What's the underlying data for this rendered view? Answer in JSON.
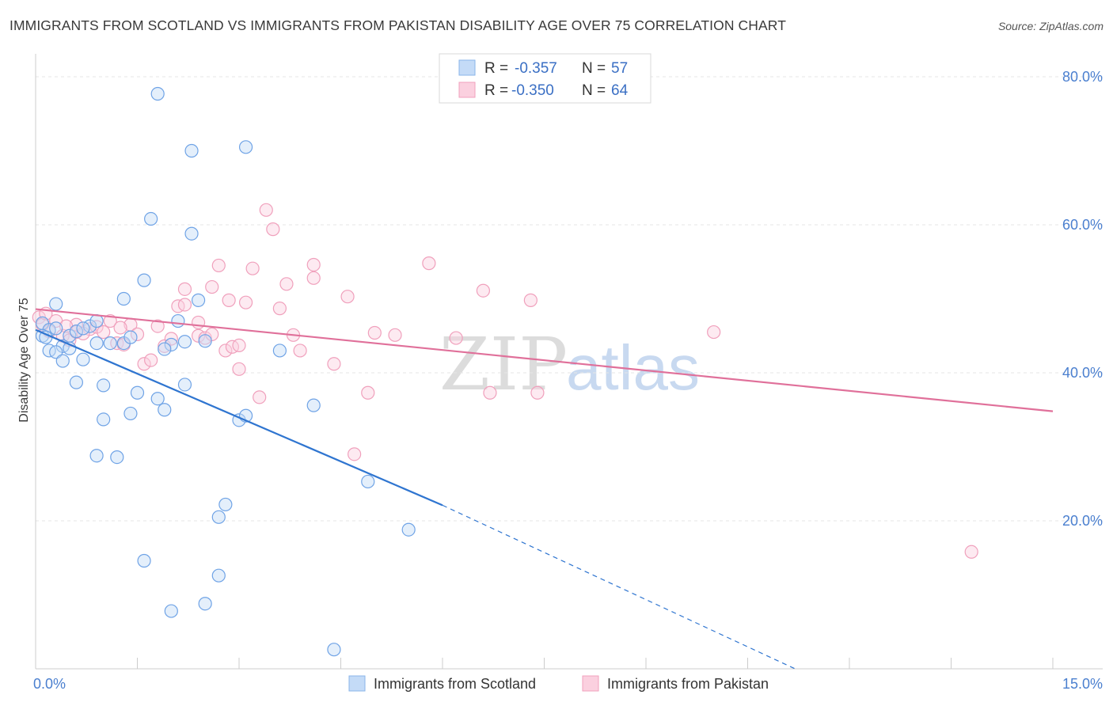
{
  "title": "IMMIGRANTS FROM SCOTLAND VS IMMIGRANTS FROM PAKISTAN DISABILITY AGE OVER 75 CORRELATION CHART",
  "source": "Source: ZipAtlas.com",
  "chart_data": {
    "type": "scatter",
    "title": "IMMIGRANTS FROM SCOTLAND VS IMMIGRANTS FROM PAKISTAN DISABILITY AGE OVER 75 CORRELATION CHART",
    "xlabel": "",
    "ylabel": "Disability Age Over 75",
    "xlim": [
      0,
      15
    ],
    "ylim": [
      0,
      80
    ],
    "x_tick_labels": [
      "0.0%",
      "15.0%"
    ],
    "y_ticks": [
      20,
      40,
      60,
      80
    ],
    "y_tick_labels": [
      "20.0%",
      "40.0%",
      "60.0%",
      "80.0%"
    ],
    "colors": {
      "scotland": "#6fa3e6",
      "pakistan": "#f0a0bc",
      "scotland_line": "#2f75d0",
      "pakistan_line": "#e0709a"
    },
    "legend": {
      "r_label": "R =",
      "n_label": "N =",
      "items": [
        {
          "r": "-0.357",
          "n": "57"
        },
        {
          "r": "-0.350",
          "n": "64"
        }
      ]
    },
    "series": [
      {
        "name": "Immigrants from Scotland",
        "trend": {
          "x0": 0,
          "y0": 45.8,
          "x1": 6,
          "y1": 22.1,
          "dash_x1": 11.2,
          "dash_y1": 0
        },
        "points": [
          [
            0.1,
            46.7
          ],
          [
            0.2,
            45.8
          ],
          [
            0.3,
            46.0
          ],
          [
            0.1,
            45.0
          ],
          [
            0.5,
            45.0
          ],
          [
            0.4,
            43.6
          ],
          [
            0.2,
            43.0
          ],
          [
            0.3,
            42.8
          ],
          [
            0.5,
            43.3
          ],
          [
            0.4,
            41.6
          ],
          [
            0.7,
            41.8
          ],
          [
            0.6,
            45.6
          ],
          [
            0.8,
            46.3
          ],
          [
            0.9,
            47.0
          ],
          [
            0.9,
            44.0
          ],
          [
            1.3,
            44.0
          ],
          [
            1.4,
            44.8
          ],
          [
            1.3,
            50.0
          ],
          [
            1.6,
            52.5
          ],
          [
            1.8,
            77.7
          ],
          [
            2.3,
            70.0
          ],
          [
            3.1,
            70.5
          ],
          [
            1.7,
            60.8
          ],
          [
            2.3,
            58.8
          ],
          [
            2.4,
            49.8
          ],
          [
            2.1,
            47.0
          ],
          [
            2.0,
            43.8
          ],
          [
            2.2,
            44.2
          ],
          [
            2.5,
            44.3
          ],
          [
            1.9,
            43.2
          ],
          [
            0.6,
            38.7
          ],
          [
            1.0,
            38.3
          ],
          [
            1.5,
            37.3
          ],
          [
            1.8,
            36.5
          ],
          [
            2.2,
            38.4
          ],
          [
            1.9,
            35.0
          ],
          [
            1.4,
            34.5
          ],
          [
            1.0,
            33.7
          ],
          [
            3.0,
            33.6
          ],
          [
            3.1,
            34.2
          ],
          [
            3.6,
            43.0
          ],
          [
            4.1,
            35.6
          ],
          [
            0.9,
            28.8
          ],
          [
            1.2,
            28.6
          ],
          [
            4.9,
            25.3
          ],
          [
            2.8,
            22.2
          ],
          [
            2.7,
            20.5
          ],
          [
            5.5,
            18.8
          ],
          [
            1.6,
            14.6
          ],
          [
            2.7,
            12.6
          ],
          [
            2.0,
            7.8
          ],
          [
            2.5,
            8.8
          ],
          [
            4.4,
            2.6
          ],
          [
            0.3,
            49.3
          ],
          [
            1.1,
            44.0
          ],
          [
            0.15,
            44.8
          ],
          [
            0.7,
            46.0
          ]
        ]
      },
      {
        "name": "Immigrants from Pakistan",
        "trend": {
          "x0": 0,
          "y0": 48.6,
          "x1": 15,
          "y1": 34.8
        },
        "points": [
          [
            0.05,
            47.5
          ],
          [
            0.1,
            46.5
          ],
          [
            0.2,
            45.6
          ],
          [
            0.4,
            45.0
          ],
          [
            0.5,
            44.4
          ],
          [
            0.6,
            45.5
          ],
          [
            0.8,
            45.9
          ],
          [
            0.9,
            46.2
          ],
          [
            1.0,
            45.5
          ],
          [
            1.1,
            47.0
          ],
          [
            1.2,
            44.0
          ],
          [
            1.3,
            43.8
          ],
          [
            1.4,
            46.5
          ],
          [
            1.5,
            45.2
          ],
          [
            1.6,
            41.2
          ],
          [
            1.7,
            41.7
          ],
          [
            1.8,
            46.3
          ],
          [
            1.9,
            43.6
          ],
          [
            2.0,
            44.6
          ],
          [
            2.1,
            49.0
          ],
          [
            2.2,
            49.2
          ],
          [
            2.2,
            51.3
          ],
          [
            2.4,
            46.8
          ],
          [
            2.4,
            45.0
          ],
          [
            2.5,
            44.7
          ],
          [
            2.6,
            45.2
          ],
          [
            2.6,
            51.6
          ],
          [
            2.7,
            54.5
          ],
          [
            2.8,
            43.0
          ],
          [
            2.9,
            43.5
          ],
          [
            3.0,
            43.7
          ],
          [
            3.0,
            40.5
          ],
          [
            3.1,
            49.5
          ],
          [
            3.2,
            54.1
          ],
          [
            3.3,
            36.7
          ],
          [
            3.4,
            62.0
          ],
          [
            3.5,
            59.4
          ],
          [
            3.6,
            48.7
          ],
          [
            3.7,
            52.0
          ],
          [
            3.8,
            45.1
          ],
          [
            3.9,
            43.0
          ],
          [
            4.1,
            54.6
          ],
          [
            4.1,
            52.8
          ],
          [
            4.4,
            41.2
          ],
          [
            4.6,
            50.3
          ],
          [
            4.7,
            29.0
          ],
          [
            4.9,
            37.3
          ],
          [
            5.0,
            45.4
          ],
          [
            5.3,
            45.1
          ],
          [
            5.8,
            54.8
          ],
          [
            6.2,
            44.7
          ],
          [
            6.6,
            51.1
          ],
          [
            6.7,
            37.3
          ],
          [
            7.3,
            49.8
          ],
          [
            7.4,
            37.3
          ],
          [
            10.0,
            45.5
          ],
          [
            13.8,
            15.8
          ],
          [
            0.3,
            47.0
          ],
          [
            0.6,
            46.5
          ],
          [
            0.15,
            48.0
          ],
          [
            0.7,
            45.3
          ],
          [
            2.85,
            49.8
          ],
          [
            1.25,
            46.1
          ],
          [
            0.45,
            46.3
          ]
        ]
      }
    ]
  },
  "bottom_legend": [
    {
      "label": "Immigrants from Scotland"
    },
    {
      "label": "Immigrants from Pakistan"
    }
  ],
  "watermark": {
    "zip": "ZIP",
    "atlas": "atlas"
  }
}
